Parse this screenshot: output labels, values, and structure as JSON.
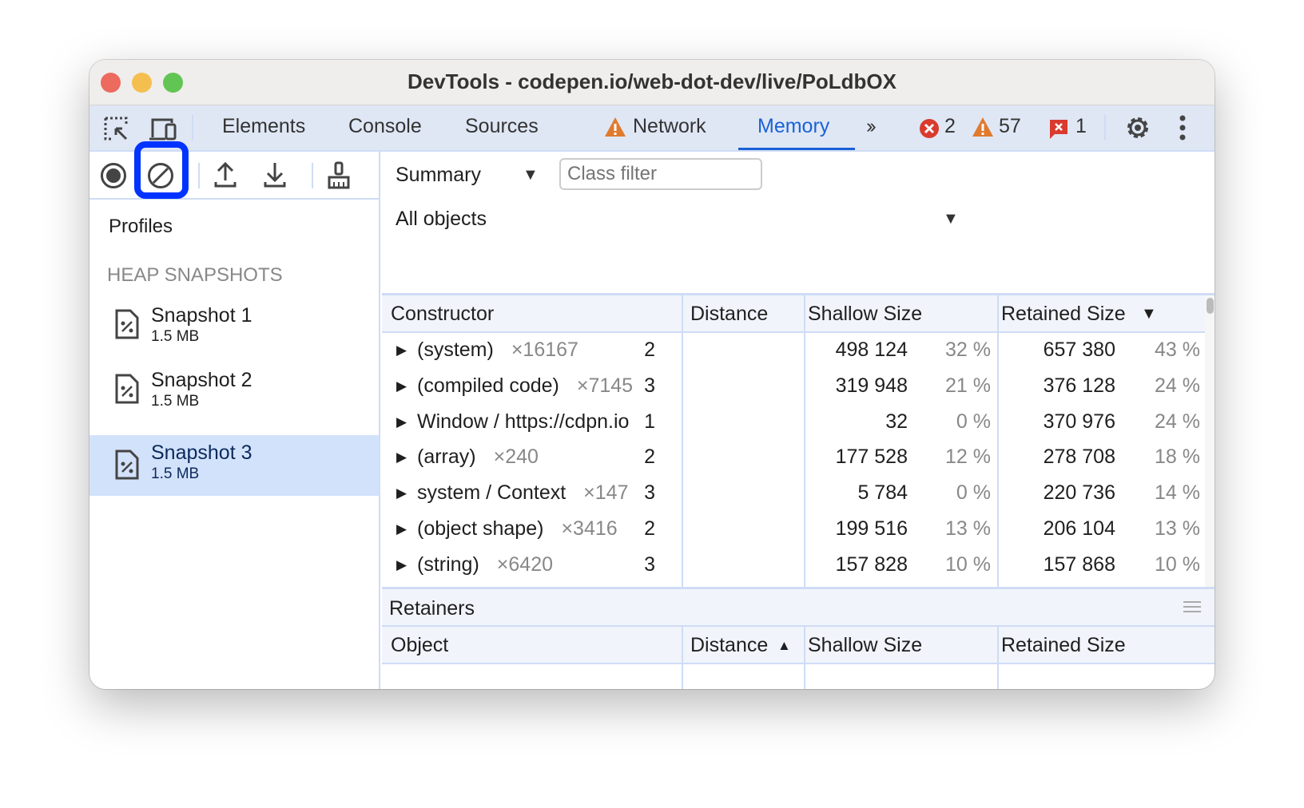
{
  "window": {
    "title": "DevTools - codepen.io/web-dot-dev/live/PoLdbOX"
  },
  "tabs": [
    {
      "label": "Elements"
    },
    {
      "label": "Console"
    },
    {
      "label": "Sources"
    },
    {
      "label": "Network",
      "icon": "warning-icon"
    },
    {
      "label": "Memory",
      "active": true
    }
  ],
  "status": {
    "errors": "2",
    "warnings": "57",
    "issues": "1"
  },
  "colors": {
    "accent": "#1a62d6",
    "highlight": "#0033ff",
    "selected": "#d3e2fb"
  },
  "toolbar": {
    "record": "record-icon",
    "clear": "clear-icon",
    "load": "upload-icon",
    "save": "download-icon",
    "gc": "broom-icon"
  },
  "sidebar": {
    "title": "Profiles",
    "section": "HEAP SNAPSHOTS",
    "snapshots": [
      {
        "name": "Snapshot 1",
        "size": "1.5 MB"
      },
      {
        "name": "Snapshot 2",
        "size": "1.5 MB"
      },
      {
        "name": "Snapshot 3",
        "size": "1.5 MB",
        "selected": true
      }
    ]
  },
  "main": {
    "view": "Summary",
    "filter_placeholder": "Class filter",
    "objects": "All objects",
    "columns": [
      "Constructor",
      "Distance",
      "Shallow Size",
      "Retained Size"
    ],
    "rows": [
      {
        "name": "(system)",
        "count": "×16167",
        "distance": "2",
        "shallow": "498 124",
        "shallow_pct": "32 %",
        "retained": "657 380",
        "retained_pct": "43 %"
      },
      {
        "name": "(compiled code)",
        "count": "×7145",
        "distance": "3",
        "shallow": "319 948",
        "shallow_pct": "21 %",
        "retained": "376 128",
        "retained_pct": "24 %"
      },
      {
        "name": "Window / https://cdpn.io",
        "count": "",
        "distance": "1",
        "shallow": "32",
        "shallow_pct": "0 %",
        "retained": "370 976",
        "retained_pct": "24 %"
      },
      {
        "name": "(array)",
        "count": "×240",
        "distance": "2",
        "shallow": "177 528",
        "shallow_pct": "12 %",
        "retained": "278 708",
        "retained_pct": "18 %"
      },
      {
        "name": "system / Context",
        "count": "×147",
        "distance": "3",
        "shallow": "5 784",
        "shallow_pct": "0 %",
        "retained": "220 736",
        "retained_pct": "14 %"
      },
      {
        "name": "(object shape)",
        "count": "×3416",
        "distance": "2",
        "shallow": "199 516",
        "shallow_pct": "13 %",
        "retained": "206 104",
        "retained_pct": "13 %"
      },
      {
        "name": "(string)",
        "count": "×6420",
        "distance": "3",
        "shallow": "157 828",
        "shallow_pct": "10 %",
        "retained": "157 868",
        "retained_pct": "10 %"
      }
    ]
  },
  "retainers": {
    "title": "Retainers",
    "columns": [
      "Object",
      "Distance",
      "Shallow Size",
      "Retained Size"
    ]
  }
}
